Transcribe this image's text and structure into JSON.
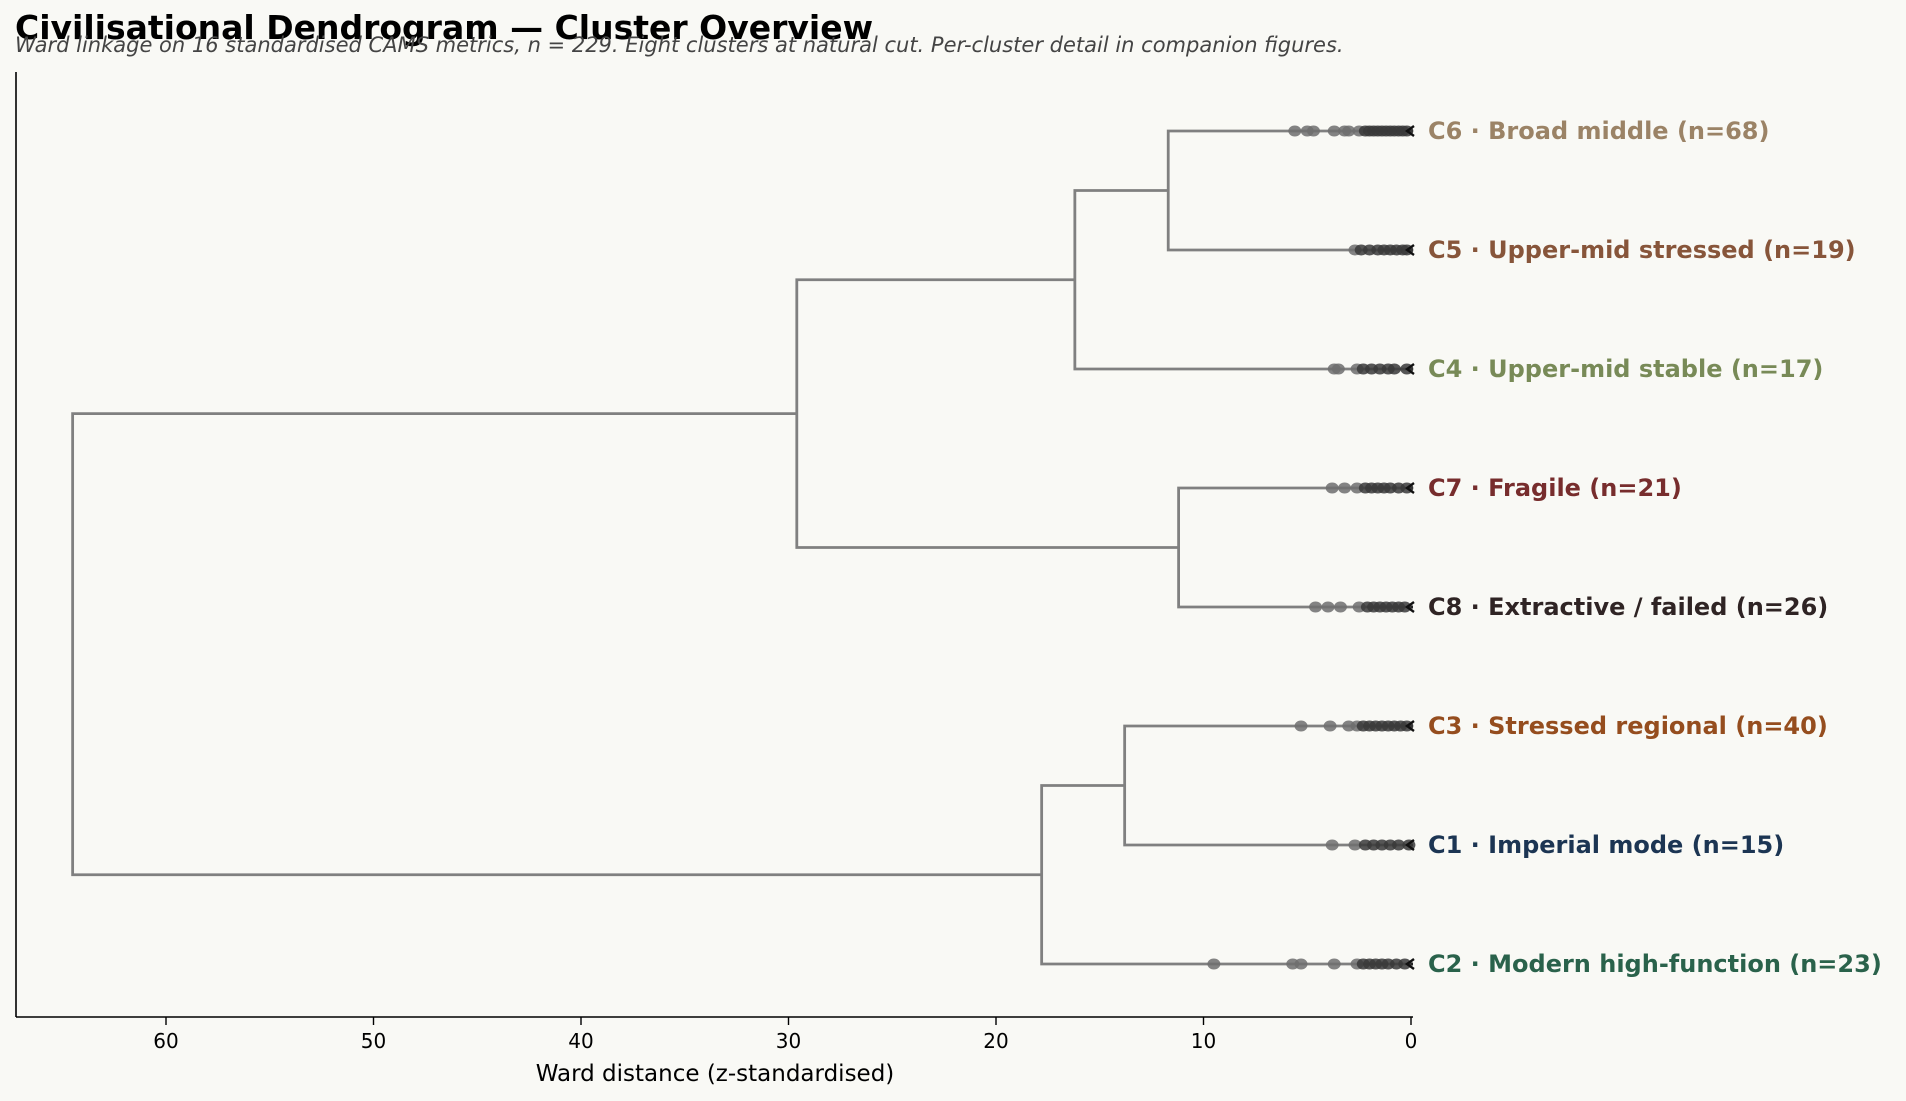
{
  "chart_data": {
    "type": "dendrogram",
    "title": "Civilisational Dendrogram — Cluster Overview",
    "subtitle": "Ward linkage on 16 standardised CAMS metrics, n = 229. Eight clusters at natural cut. Per-cluster detail in companion figures.",
    "xlabel": "Ward distance (z-standardised)",
    "xlim": [
      67.5,
      0
    ],
    "xticks": [
      60,
      50,
      40,
      30,
      20,
      10,
      0
    ],
    "leaves": [
      {
        "id": "C6",
        "label": "C6 · Broad middle (n=68)",
        "color": "#9b8366",
        "intra_merges": [
          5.6,
          5.0,
          4.7,
          3.7,
          3.2,
          3.0,
          2.5,
          2.2,
          2.0,
          1.8,
          1.6,
          1.4,
          1.2,
          1.0,
          0.8,
          0.6,
          0.4,
          0.2
        ]
      },
      {
        "id": "C5",
        "label": "C5 · Upper-mid stressed (n=19)",
        "color": "#87553a",
        "intra_merges": [
          2.7,
          2.4,
          2.0,
          1.6,
          1.3,
          1.0,
          0.7,
          0.4,
          0.2
        ]
      },
      {
        "id": "C4",
        "label": "C4 · Upper-mid stable (n=17)",
        "color": "#788a57",
        "intra_merges": [
          3.7,
          3.5,
          2.6,
          2.3,
          1.9,
          1.5,
          1.1,
          0.8,
          0.2
        ]
      },
      {
        "id": "C7",
        "label": "C7 · Fragile (n=21)",
        "color": "#772d2d",
        "intra_merges": [
          3.8,
          3.2,
          2.6,
          2.2,
          1.9,
          1.6,
          1.3,
          1.0,
          0.6,
          0.2
        ]
      },
      {
        "id": "C8",
        "label": "C8 · Extractive / failed (n=26)",
        "color": "#2f2424",
        "intra_merges": [
          4.6,
          4.0,
          3.4,
          2.5,
          2.1,
          1.8,
          1.5,
          1.2,
          0.9,
          0.6,
          0.3
        ]
      },
      {
        "id": "C3",
        "label": "C3 · Stressed regional (n=40)",
        "color": "#954d1e",
        "intra_merges": [
          5.3,
          3.9,
          3.0,
          2.6,
          2.3,
          2.0,
          1.7,
          1.4,
          1.1,
          0.8,
          0.5,
          0.2
        ]
      },
      {
        "id": "C1",
        "label": "C1 · Imperial mode (n=15)",
        "color": "#1c3553",
        "intra_merges": [
          3.8,
          2.7,
          2.2,
          1.8,
          1.4,
          1.0,
          0.6,
          0.1
        ]
      },
      {
        "id": "C2",
        "label": "C2 · Modern high-function (n=23)",
        "color": "#2a624b",
        "intra_merges": [
          9.5,
          5.7,
          5.3,
          3.7,
          2.6,
          2.3,
          2.0,
          1.7,
          1.4,
          1.1,
          0.7,
          0.3
        ]
      }
    ],
    "merges": [
      {
        "a": "C6",
        "b": "C5",
        "height": 11.7
      },
      {
        "a": "C7",
        "b": "C8",
        "height": 11.2
      },
      {
        "a": "C3",
        "b": "C1",
        "height": 13.8
      },
      {
        "a": "m0",
        "b": "C4",
        "height": 16.2
      },
      {
        "a": "m2",
        "b": "C2",
        "height": 17.8
      },
      {
        "a": "m3",
        "b": "m1",
        "height": 29.6
      },
      {
        "a": "m5",
        "b": "m4",
        "height": 64.5
      }
    ],
    "link_color": "#808080",
    "grid": false,
    "legend": "none"
  }
}
